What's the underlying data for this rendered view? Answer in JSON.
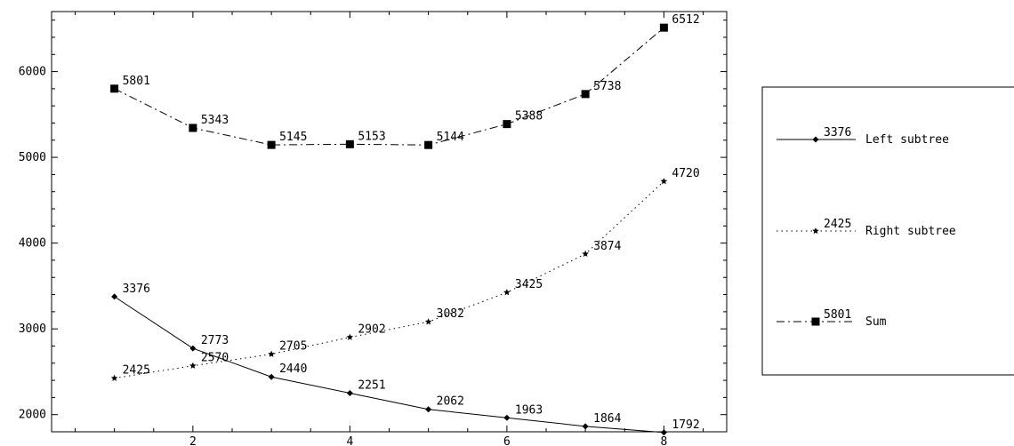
{
  "chart_data": {
    "type": "line",
    "x": [
      1,
      2,
      3,
      4,
      5,
      6,
      7,
      8
    ],
    "xlim": [
      0.2,
      8.8
    ],
    "ylim": [
      1800,
      6700
    ],
    "xticks_major": [
      2,
      4,
      6,
      8
    ],
    "xtick_labels": [
      "2",
      "4",
      "6",
      "8"
    ],
    "yticks_major": [
      2000,
      3000,
      4000,
      5000,
      6000
    ],
    "ytick_labels": [
      "2000",
      "3000",
      "4000",
      "5000",
      "6000"
    ],
    "grid": false,
    "legend_position": "right",
    "series": [
      {
        "name": "Left subtree",
        "marker": "diamond",
        "line": "solid",
        "values": [
          3376,
          2773,
          2440,
          2251,
          2062,
          1963,
          1864,
          1792
        ],
        "labels": [
          "3376",
          "2773",
          "2440",
          "2251",
          "2062",
          "1963",
          "1864",
          "1792"
        ],
        "legend_value": "3376"
      },
      {
        "name": "Right subtree",
        "marker": "star",
        "line": "dotted",
        "values": [
          2425,
          2570,
          2705,
          2902,
          3082,
          3425,
          3874,
          4720
        ],
        "labels": [
          "2425",
          "2570",
          "2705",
          "2902",
          "3082",
          "3425",
          "3874",
          "4720"
        ],
        "legend_value": "2425"
      },
      {
        "name": "Sum",
        "marker": "square",
        "line": "dashdot",
        "values": [
          5801,
          5343,
          5145,
          5153,
          5144,
          5388,
          5738,
          6512
        ],
        "labels": [
          "5801",
          "5343",
          "5145",
          "5153",
          "5144",
          "5388",
          "5738",
          "6512"
        ],
        "legend_value": "5801"
      }
    ]
  },
  "colors": {
    "ink": "#000000",
    "background": "#ffffff"
  }
}
